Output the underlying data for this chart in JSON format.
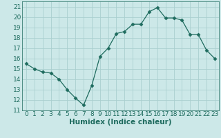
{
  "x": [
    0,
    1,
    2,
    3,
    4,
    5,
    6,
    7,
    8,
    9,
    10,
    11,
    12,
    13,
    14,
    15,
    16,
    17,
    18,
    19,
    20,
    21,
    22,
    23
  ],
  "y": [
    15.5,
    15.0,
    14.7,
    14.6,
    14.0,
    13.0,
    12.2,
    11.5,
    13.4,
    16.2,
    17.0,
    18.4,
    18.6,
    19.3,
    19.3,
    20.5,
    20.9,
    19.9,
    19.9,
    19.7,
    18.3,
    18.3,
    16.8,
    16.0
  ],
  "line_color": "#1e6b5e",
  "marker": "D",
  "marker_size": 2.5,
  "bg_color": "#cce8e8",
  "grid_color": "#aacfcf",
  "xlabel": "Humidex (Indice chaleur)",
  "xlim": [
    -0.5,
    23.5
  ],
  "ylim": [
    11,
    21.5
  ],
  "yticks": [
    11,
    12,
    13,
    14,
    15,
    16,
    17,
    18,
    19,
    20,
    21
  ],
  "xticks": [
    0,
    1,
    2,
    3,
    4,
    5,
    6,
    7,
    8,
    9,
    10,
    11,
    12,
    13,
    14,
    15,
    16,
    17,
    18,
    19,
    20,
    21,
    22,
    23
  ],
  "tick_color": "#1e6b5e",
  "label_fontsize": 6.5,
  "xlabel_fontsize": 7.5
}
